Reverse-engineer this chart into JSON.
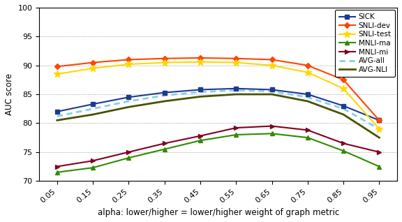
{
  "alpha": [
    0.05,
    0.15,
    0.25,
    0.35,
    0.45,
    0.55,
    0.65,
    0.75,
    0.85,
    0.95
  ],
  "SICK": [
    82.0,
    83.3,
    84.5,
    85.3,
    85.8,
    86.0,
    85.8,
    85.0,
    83.0,
    80.5
  ],
  "SNLI-dev": [
    89.8,
    90.5,
    91.0,
    91.2,
    91.3,
    91.2,
    91.0,
    90.0,
    87.5,
    80.5
  ],
  "SNLI-test": [
    88.5,
    89.5,
    90.2,
    90.5,
    90.6,
    90.5,
    90.0,
    88.8,
    86.0,
    79.0
  ],
  "MNLI-ma": [
    71.5,
    72.3,
    74.0,
    75.5,
    77.0,
    78.0,
    78.2,
    77.5,
    75.2,
    72.5
  ],
  "MNLI-mi": [
    72.5,
    73.5,
    75.0,
    76.5,
    77.8,
    79.2,
    79.5,
    78.8,
    76.5,
    75.0
  ],
  "AVG-all": [
    81.2,
    82.5,
    83.8,
    84.8,
    85.4,
    85.7,
    85.5,
    84.5,
    82.5,
    79.0
  ],
  "AVG-NLI": [
    80.5,
    81.5,
    82.8,
    83.8,
    84.6,
    85.0,
    85.0,
    83.8,
    81.5,
    77.5
  ],
  "colors": {
    "SICK": "#1e3a8f",
    "SNLI-dev": "#ff4500",
    "SNLI-test": "#ffd700",
    "MNLI-ma": "#2e8b00",
    "MNLI-mi": "#800020",
    "AVG-all": "#87ceeb",
    "AVG-NLI": "#4a5200"
  },
  "ylim": [
    70,
    100
  ],
  "yticks": [
    70,
    75,
    80,
    85,
    90,
    95,
    100
  ],
  "xlabel": "alpha: lower/higher = lower/higher weight of graph metric",
  "ylabel": "AUC score",
  "figsize": [
    5.76,
    3.18
  ],
  "dpi": 100
}
